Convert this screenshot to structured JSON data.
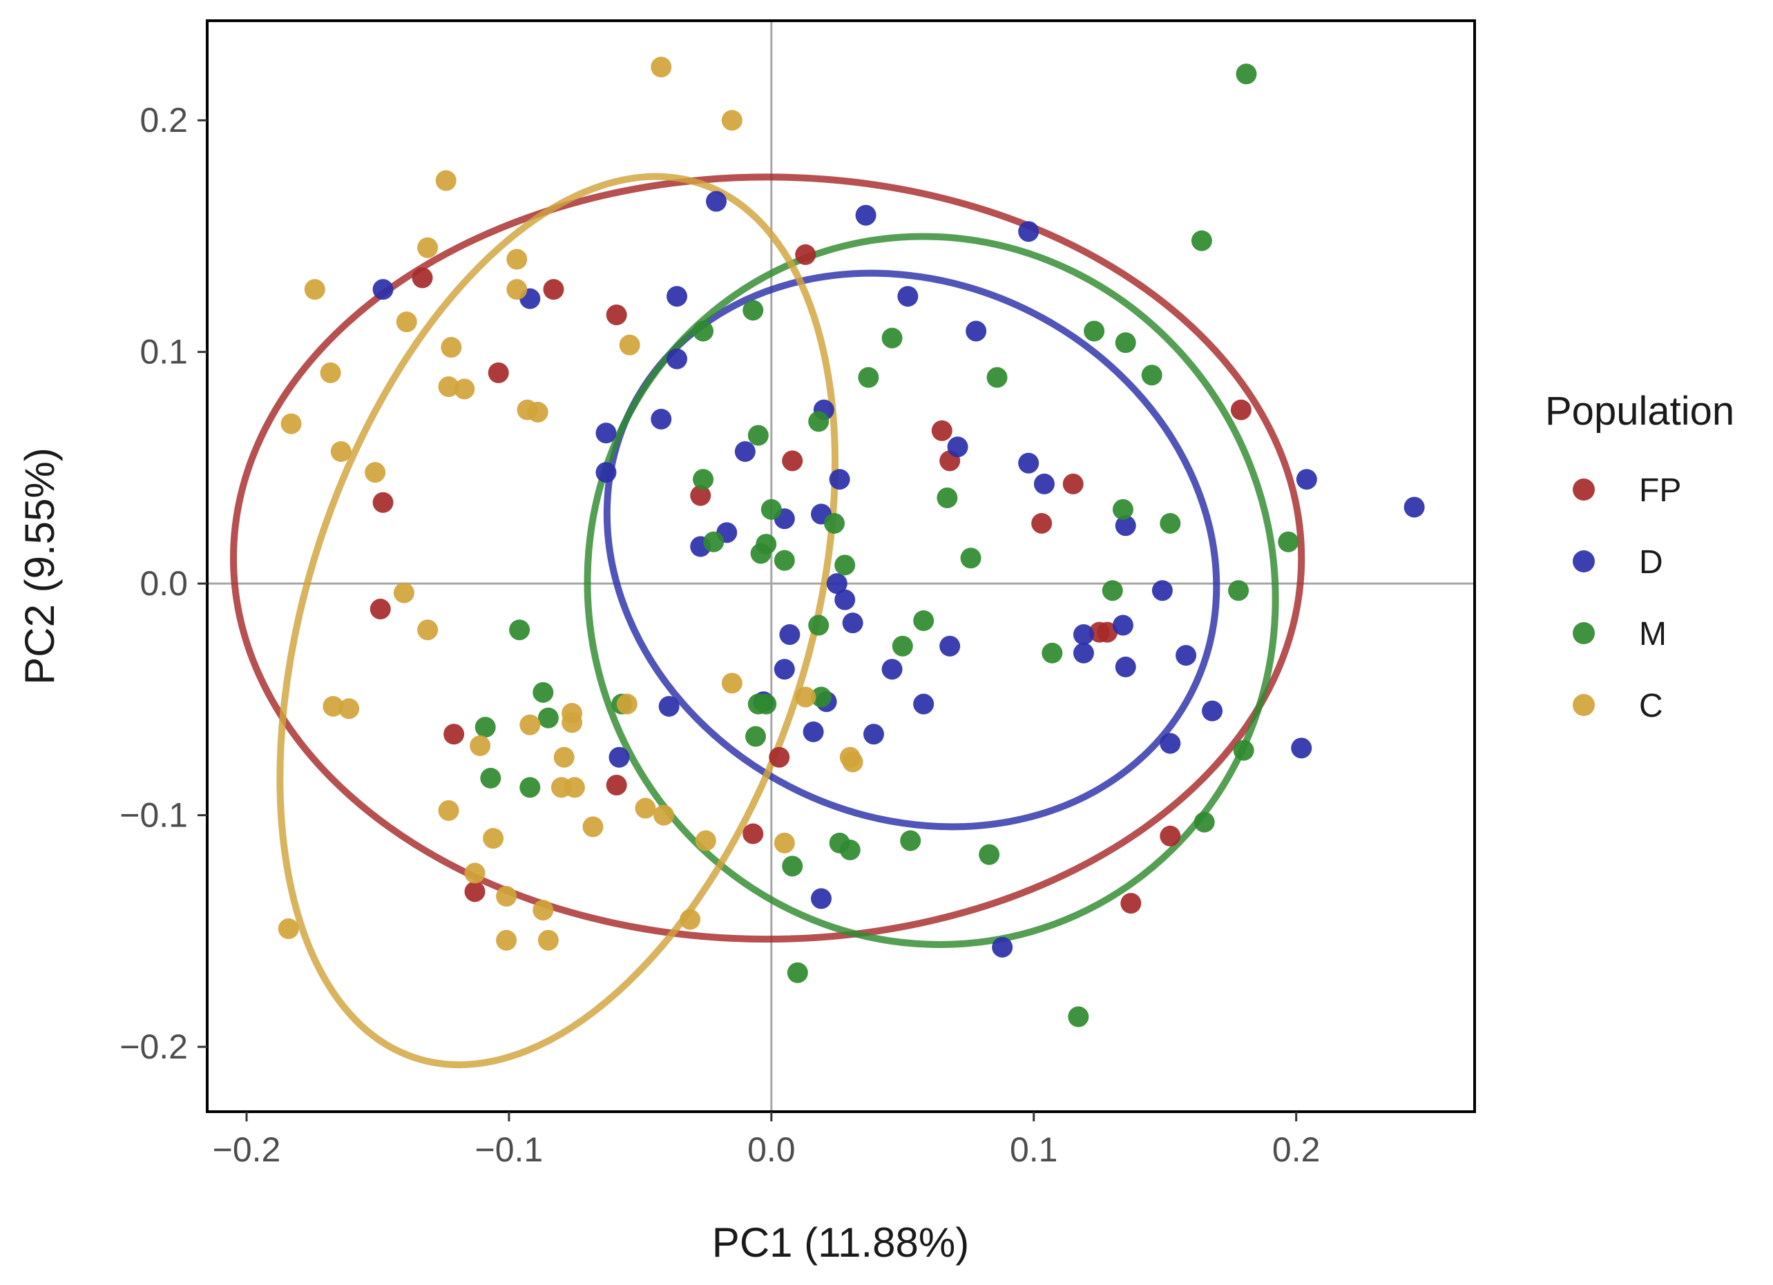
{
  "chart_data": {
    "type": "scatter",
    "title": "",
    "xlabel": "PC1 (11.88%)",
    "ylabel": "PC2 (9.55%)",
    "xlim": [
      -0.215,
      0.268
    ],
    "ylim": [
      -0.228,
      0.243
    ],
    "x_ticks": [
      -0.2,
      -0.1,
      0.0,
      0.1,
      0.2
    ],
    "x_tick_labels": [
      "−0.2",
      "−0.1",
      "0.0",
      "0.1",
      "0.2"
    ],
    "y_ticks": [
      -0.2,
      -0.1,
      0.0,
      0.1,
      0.2
    ],
    "y_tick_labels": [
      "−0.2",
      "−0.1",
      "0.0",
      "0.1",
      "0.2"
    ],
    "reference_lines": {
      "x": 0,
      "y": 0
    },
    "grid": false,
    "legend": {
      "title": "Population",
      "position": "right"
    },
    "series": [
      {
        "name": "FP",
        "color": "#A72A2A",
        "ellipse": {
          "cx": -0.0015,
          "cy": 0.011,
          "rx": 0.2035,
          "ry": 0.1645,
          "tilt_deg": 0
        },
        "points": [
          [
            -0.148,
            0.035
          ],
          [
            -0.149,
            -0.011
          ],
          [
            -0.133,
            0.132
          ],
          [
            -0.104,
            0.091
          ],
          [
            -0.083,
            0.127
          ],
          [
            -0.121,
            -0.065
          ],
          [
            -0.113,
            -0.133
          ],
          [
            -0.059,
            0.116
          ],
          [
            -0.059,
            -0.087
          ],
          [
            -0.027,
            0.038
          ],
          [
            0.008,
            0.053
          ],
          [
            0.013,
            0.142
          ],
          [
            -0.007,
            -0.108
          ],
          [
            0.003,
            -0.075
          ],
          [
            0.065,
            0.066
          ],
          [
            0.068,
            0.053
          ],
          [
            0.103,
            0.026
          ],
          [
            0.115,
            0.043
          ],
          [
            0.125,
            -0.021
          ],
          [
            0.128,
            -0.021
          ],
          [
            0.152,
            -0.109
          ],
          [
            0.137,
            -0.138
          ],
          [
            0.179,
            0.075
          ]
        ]
      },
      {
        "name": "D",
        "color": "#2B2FA8",
        "ellipse": {
          "cx": 0.0535,
          "cy": 0.0145,
          "rx": 0.1015,
          "ry": 0.1355,
          "tilt_deg": -63
        },
        "points": [
          [
            -0.148,
            0.127
          ],
          [
            -0.092,
            0.123
          ],
          [
            -0.036,
            0.124
          ],
          [
            -0.036,
            0.097
          ],
          [
            -0.021,
            0.165
          ],
          [
            -0.042,
            0.071
          ],
          [
            -0.063,
            0.065
          ],
          [
            -0.063,
            0.048
          ],
          [
            -0.01,
            0.057
          ],
          [
            -0.027,
            0.016
          ],
          [
            -0.017,
            0.022
          ],
          [
            -0.039,
            -0.053
          ],
          [
            -0.058,
            -0.075
          ],
          [
            0.005,
            0.028
          ],
          [
            0.02,
            0.075
          ],
          [
            0.026,
            0.045
          ],
          [
            0.019,
            0.03
          ],
          [
            0.025,
            0.0
          ],
          [
            0.028,
            -0.007
          ],
          [
            0.031,
            -0.017
          ],
          [
            0.007,
            -0.022
          ],
          [
            0.005,
            -0.037
          ],
          [
            -0.003,
            -0.051
          ],
          [
            0.016,
            -0.064
          ],
          [
            0.021,
            -0.051
          ],
          [
            0.039,
            -0.065
          ],
          [
            0.046,
            -0.037
          ],
          [
            0.058,
            -0.052
          ],
          [
            0.068,
            -0.027
          ],
          [
            0.036,
            0.159
          ],
          [
            0.052,
            0.124
          ],
          [
            0.078,
            0.109
          ],
          [
            0.071,
            0.059
          ],
          [
            0.098,
            0.152
          ],
          [
            0.098,
            0.052
          ],
          [
            0.104,
            0.043
          ],
          [
            0.119,
            -0.022
          ],
          [
            0.119,
            -0.03
          ],
          [
            0.135,
            0.025
          ],
          [
            0.134,
            -0.018
          ],
          [
            0.135,
            -0.036
          ],
          [
            0.149,
            -0.003
          ],
          [
            0.158,
            -0.031
          ],
          [
            0.152,
            -0.069
          ],
          [
            0.168,
            -0.055
          ],
          [
            0.202,
            -0.071
          ],
          [
            0.204,
            0.045
          ],
          [
            0.245,
            0.033
          ],
          [
            0.088,
            -0.157
          ],
          [
            0.019,
            -0.136
          ]
        ]
      },
      {
        "name": "M",
        "color": "#2F8A2F",
        "ellipse": {
          "cx": 0.061,
          "cy": -0.003,
          "rx": 0.1305,
          "ry": 0.1535,
          "tilt_deg": -20
        },
        "points": [
          [
            -0.096,
            -0.02
          ],
          [
            -0.087,
            -0.047
          ],
          [
            -0.085,
            -0.058
          ],
          [
            -0.109,
            -0.062
          ],
          [
            -0.107,
            -0.084
          ],
          [
            -0.092,
            -0.088
          ],
          [
            -0.026,
            0.045
          ],
          [
            -0.026,
            0.109
          ],
          [
            -0.022,
            0.018
          ],
          [
            -0.007,
            0.118
          ],
          [
            -0.005,
            0.064
          ],
          [
            -0.004,
            0.013
          ],
          [
            -0.002,
            0.017
          ],
          [
            0.0,
            0.032
          ],
          [
            0.005,
            0.01
          ],
          [
            0.018,
            0.07
          ],
          [
            0.024,
            0.026
          ],
          [
            0.028,
            0.008
          ],
          [
            0.018,
            -0.018
          ],
          [
            0.019,
            -0.049
          ],
          [
            -0.005,
            -0.052
          ],
          [
            -0.002,
            -0.052
          ],
          [
            -0.006,
            -0.066
          ],
          [
            0.026,
            -0.112
          ],
          [
            0.03,
            -0.115
          ],
          [
            0.008,
            -0.122
          ],
          [
            0.01,
            -0.168
          ],
          [
            0.037,
            0.089
          ],
          [
            0.046,
            0.106
          ],
          [
            0.05,
            -0.027
          ],
          [
            0.058,
            -0.016
          ],
          [
            0.053,
            -0.111
          ],
          [
            0.067,
            0.037
          ],
          [
            0.076,
            0.011
          ],
          [
            0.086,
            0.089
          ],
          [
            0.083,
            -0.117
          ],
          [
            0.107,
            -0.03
          ],
          [
            0.117,
            -0.187
          ],
          [
            0.123,
            0.109
          ],
          [
            0.13,
            -0.003
          ],
          [
            0.134,
            0.032
          ],
          [
            0.135,
            0.104
          ],
          [
            0.145,
            0.09
          ],
          [
            0.152,
            0.026
          ],
          [
            0.164,
            0.148
          ],
          [
            0.178,
            -0.003
          ],
          [
            0.181,
            0.22
          ],
          [
            0.18,
            -0.072
          ],
          [
            0.165,
            -0.103
          ],
          [
            0.197,
            0.018
          ],
          [
            -0.057,
            -0.052
          ]
        ]
      },
      {
        "name": "C",
        "color": "#D1A43A",
        "ellipse": {
          "cx": -0.0815,
          "cy": -0.016,
          "rx": 0.0955,
          "ry": 0.1985,
          "tilt_deg": 18
        },
        "points": [
          [
            -0.042,
            0.223
          ],
          [
            -0.015,
            0.2
          ],
          [
            -0.124,
            0.174
          ],
          [
            -0.131,
            0.145
          ],
          [
            -0.174,
            0.127
          ],
          [
            -0.097,
            0.14
          ],
          [
            -0.097,
            0.127
          ],
          [
            -0.139,
            0.113
          ],
          [
            -0.122,
            0.102
          ],
          [
            -0.054,
            0.103
          ],
          [
            -0.168,
            0.091
          ],
          [
            -0.123,
            0.085
          ],
          [
            -0.117,
            0.084
          ],
          [
            -0.093,
            0.075
          ],
          [
            -0.089,
            0.074
          ],
          [
            -0.183,
            0.069
          ],
          [
            -0.164,
            0.057
          ],
          [
            -0.151,
            0.048
          ],
          [
            -0.14,
            -0.004
          ],
          [
            -0.131,
            -0.02
          ],
          [
            -0.167,
            -0.053
          ],
          [
            -0.161,
            -0.054
          ],
          [
            -0.111,
            -0.07
          ],
          [
            -0.092,
            -0.061
          ],
          [
            -0.079,
            -0.075
          ],
          [
            -0.076,
            -0.056
          ],
          [
            -0.076,
            -0.06
          ],
          [
            -0.08,
            -0.088
          ],
          [
            -0.075,
            -0.088
          ],
          [
            -0.055,
            -0.052
          ],
          [
            -0.015,
            -0.043
          ],
          [
            0.013,
            -0.049
          ],
          [
            0.03,
            -0.075
          ],
          [
            0.031,
            -0.077
          ],
          [
            -0.123,
            -0.098
          ],
          [
            -0.048,
            -0.097
          ],
          [
            -0.041,
            -0.1
          ],
          [
            -0.068,
            -0.105
          ],
          [
            -0.025,
            -0.111
          ],
          [
            0.005,
            -0.112
          ],
          [
            -0.106,
            -0.11
          ],
          [
            -0.113,
            -0.125
          ],
          [
            -0.101,
            -0.135
          ],
          [
            -0.087,
            -0.141
          ],
          [
            -0.101,
            -0.154
          ],
          [
            -0.085,
            -0.154
          ],
          [
            -0.031,
            -0.145
          ],
          [
            -0.184,
            -0.149
          ]
        ]
      }
    ]
  }
}
